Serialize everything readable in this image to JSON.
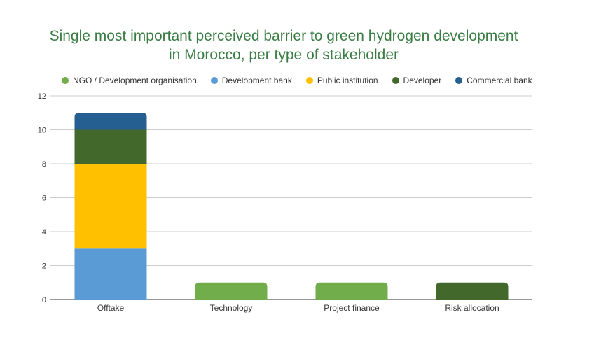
{
  "chart_data": {
    "type": "bar",
    "stacked": true,
    "title_lines": [
      "Single most important perceived barrier to green hydrogen development",
      "in Morocco, per type of stakeholder"
    ],
    "categories": [
      "Offtake",
      "Technology",
      "Project finance",
      "Risk allocation"
    ],
    "series": [
      {
        "name": "NGO / Development organisation",
        "color": "#72ad4b",
        "values": [
          0,
          1,
          1,
          0
        ]
      },
      {
        "name": "Development bank",
        "color": "#5b9bd5",
        "values": [
          3,
          0,
          0,
          0
        ]
      },
      {
        "name": "Public institution",
        "color": "#ffc000",
        "values": [
          5,
          0,
          0,
          0
        ]
      },
      {
        "name": "Developer",
        "color": "#43682b",
        "values": [
          2,
          0,
          0,
          1
        ]
      },
      {
        "name": "Commercial bank",
        "color": "#255e91",
        "values": [
          1,
          0,
          0,
          0
        ]
      }
    ],
    "ylim": [
      0,
      12
    ],
    "yticks": [
      0,
      2,
      4,
      6,
      8,
      10,
      12
    ],
    "grid": true,
    "legend_position": "top"
  }
}
